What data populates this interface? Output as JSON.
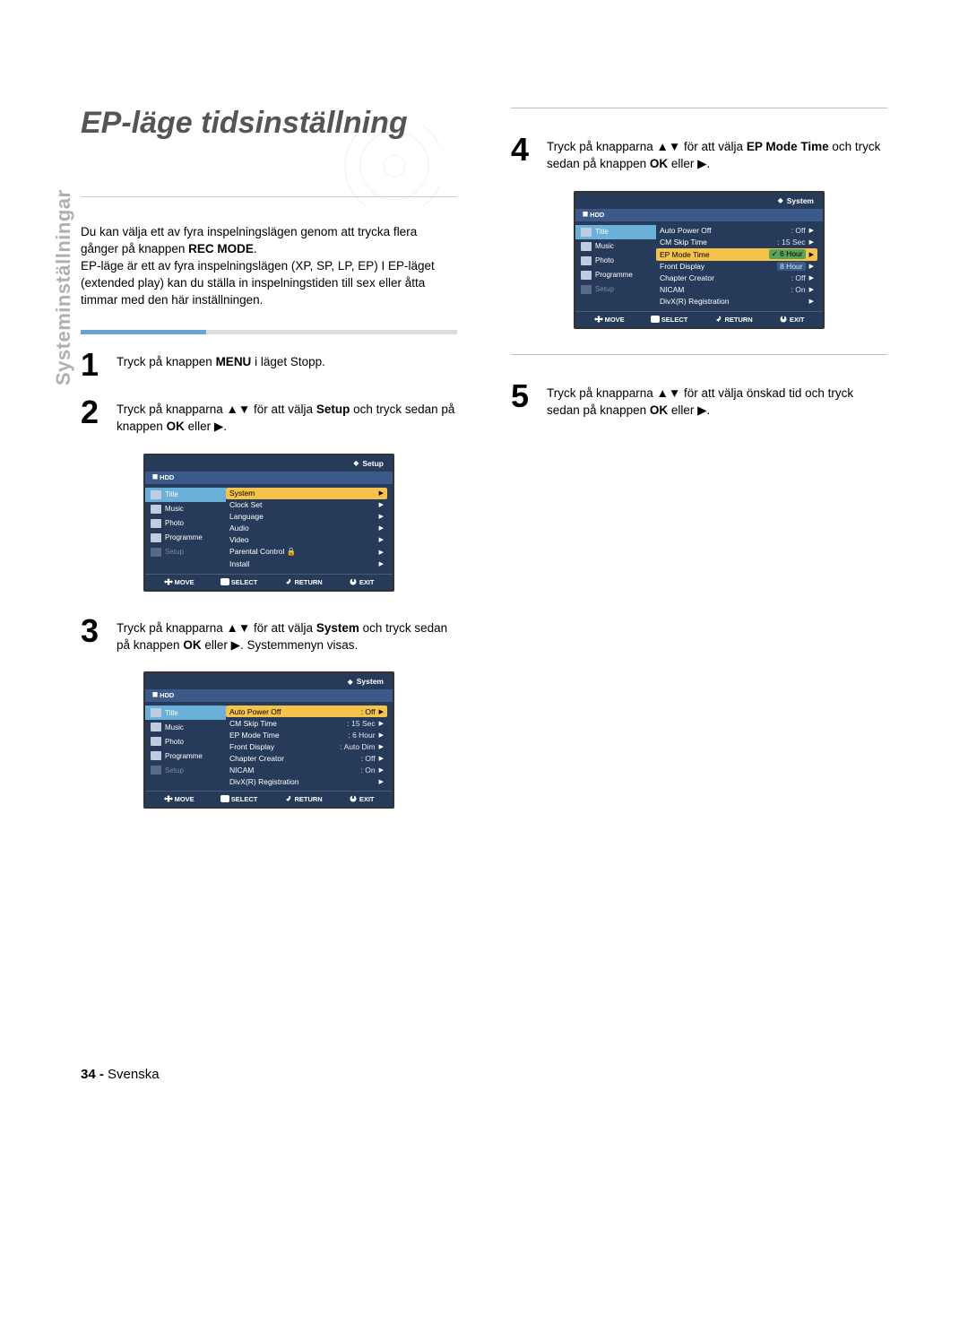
{
  "sidebar_label": "Systeminställningar",
  "title": "EP-läge tidsinställning",
  "intro_lines": [
    "Du kan välja ett av fyra inspelningslägen genom att trycka flera gånger på knappen ",
    "REC MODE",
    ".",
    "EP-läge är ett av fyra inspelningslägen (XP, SP, LP, EP) I EP-läget (extended play) kan du ställa in inspelningstiden till sex eller åtta timmar med den här inställningen."
  ],
  "steps": {
    "s1": {
      "num": "1",
      "t1": "Tryck på knappen ",
      "b1": "MENU",
      "t2": " i läget Stopp."
    },
    "s2": {
      "num": "2",
      "t1": "Tryck på knapparna ▲▼ för att välja ",
      "b1": "Setup",
      "t2": " och tryck sedan på knappen ",
      "b2": "OK",
      "t3": " eller ▶."
    },
    "s3": {
      "num": "3",
      "t1": "Tryck på knapparna ▲▼ för att välja ",
      "b1": "System",
      "t2": " och tryck sedan på knappen ",
      "b2": "OK",
      "t3": " eller ▶. Systemmenyn visas."
    },
    "s4": {
      "num": "4",
      "t1": "Tryck på knapparna ▲▼ för att välja ",
      "b1": "EP Mode Time",
      "t2": " och tryck sedan på knappen ",
      "b2": "OK",
      "t3": " eller ▶."
    },
    "s5": {
      "num": "5",
      "t1": "Tryck på knapparna ▲▼ för att välja önskad tid och tryck sedan på knappen ",
      "b1": "OK",
      "t2": " eller ▶."
    }
  },
  "menu_common": {
    "hdd_icon": "⯀",
    "hdd_label": "HDD",
    "nav": [
      {
        "label": "Title",
        "active": true
      },
      {
        "label": "Music"
      },
      {
        "label": "Photo"
      },
      {
        "label": "Programme"
      },
      {
        "label": "Setup",
        "dim": true
      }
    ],
    "footer": [
      {
        "icon": "move",
        "label": "MOVE"
      },
      {
        "icon": "select",
        "label": "SELECT"
      },
      {
        "icon": "return",
        "label": "RETURN"
      },
      {
        "icon": "exit",
        "label": "EXIT"
      }
    ]
  },
  "menu1": {
    "header": "Setup",
    "rows": [
      {
        "label": "System",
        "hover": true
      },
      {
        "label": "Clock Set"
      },
      {
        "label": "Language"
      },
      {
        "label": "Audio"
      },
      {
        "label": "Video"
      },
      {
        "label": "Parental Control",
        "lock": true
      },
      {
        "label": "Install"
      }
    ]
  },
  "menu2": {
    "header": "System",
    "rows": [
      {
        "label": "Auto Power Off",
        "val": ": Off",
        "hover": true
      },
      {
        "label": "CM Skip Time",
        "val": ": 15 Sec"
      },
      {
        "label": "EP Mode Time",
        "val": ": 6 Hour"
      },
      {
        "label": "Front Display",
        "val": ": Auto Dim"
      },
      {
        "label": "Chapter Creator",
        "val": ": Off"
      },
      {
        "label": "NICAM",
        "val": ": On"
      },
      {
        "label": "DivX(R) Registration",
        "val": ""
      }
    ]
  },
  "menu3": {
    "header": "System",
    "rows": [
      {
        "label": "Auto Power Off",
        "val": ": Off"
      },
      {
        "label": "CM Skip Time",
        "val": ": 15 Sec"
      },
      {
        "label": "EP Mode Time",
        "val": "6 Hour",
        "hover": true,
        "checked": true
      },
      {
        "label": "Front Display",
        "val": "8 Hour",
        "boxed": true
      },
      {
        "label": "Chapter Creator",
        "val": ": Off"
      },
      {
        "label": "NICAM",
        "val": ": On"
      },
      {
        "label": "DivX(R) Registration",
        "val": ""
      }
    ]
  },
  "footer": {
    "pagenum": "34 -",
    "lang": "Svenska"
  },
  "colors": {
    "menu_bg": "#263a59",
    "menu_hdd_bg": "#3b5a8a",
    "nav_active": "#6ab0d8",
    "row_hover": "#f5c24a",
    "checked_bg": "#5aa35a",
    "bar_accent": "#6aa3d6",
    "sidebar_gray": "#b0b0b0"
  }
}
